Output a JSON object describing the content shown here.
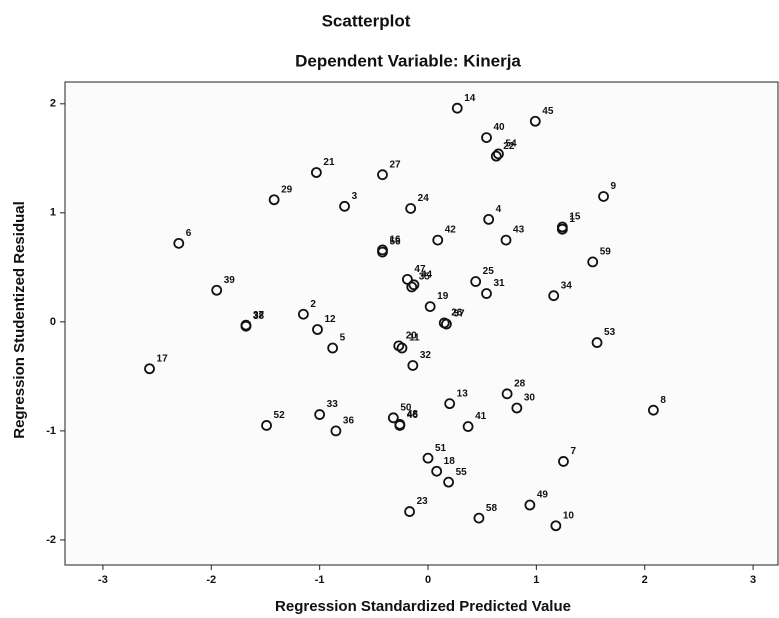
{
  "chart_data": {
    "type": "scatter",
    "title": "Scatterplot",
    "subtitle": "Dependent Variable: Kinerja",
    "x_label": "Regression Standardized Predicted Value",
    "y_label": "Regression Studentized Residual",
    "xlim": [
      -3.35,
      3.23
    ],
    "ylim": [
      -2.23,
      2.2
    ],
    "xticks": [
      -3,
      -2,
      -1,
      0,
      1,
      2,
      3
    ],
    "yticks": [
      -2,
      -1,
      0,
      1,
      2
    ],
    "color": "#111111",
    "point_labels": [
      "14",
      "45",
      "40",
      "54",
      "22",
      "21",
      "27",
      "29",
      "3",
      "9",
      "24",
      "4",
      "15",
      "1",
      "6",
      "42",
      "43",
      "16",
      "56",
      "59",
      "47",
      "44",
      "35",
      "25",
      "39",
      "34",
      "31",
      "19",
      "2",
      "37",
      "38",
      "12",
      "57",
      "26",
      "5",
      "20",
      "11",
      "53",
      "17",
      "32",
      "28",
      "30",
      "13",
      "8",
      "33",
      "50",
      "48",
      "46",
      "41",
      "36",
      "52",
      "51",
      "7",
      "18",
      "55",
      "49",
      "23",
      "58",
      "10"
    ],
    "x": [
      0.27,
      0.99,
      0.54,
      0.65,
      0.63,
      -1.03,
      -0.42,
      -1.42,
      -0.77,
      1.62,
      -0.16,
      0.56,
      1.24,
      1.24,
      -2.3,
      0.09,
      0.72,
      -0.42,
      -0.42,
      1.52,
      -0.19,
      -0.13,
      -0.15,
      0.44,
      -1.95,
      1.16,
      0.54,
      0.02,
      -1.15,
      -1.68,
      -1.68,
      -1.02,
      0.17,
      0.15,
      -0.88,
      -0.27,
      -0.24,
      1.56,
      -2.57,
      -0.14,
      0.73,
      0.82,
      0.2,
      2.08,
      -1.0,
      -0.32,
      -0.26,
      -0.26,
      0.37,
      -0.85,
      -1.49,
      0.0,
      1.25,
      0.08,
      0.19,
      0.94,
      -0.17,
      0.47,
      1.18
    ],
    "values": [
      1.96,
      1.84,
      1.69,
      1.54,
      1.52,
      1.37,
      1.35,
      1.12,
      1.06,
      1.15,
      1.04,
      0.94,
      0.87,
      0.85,
      0.72,
      0.75,
      0.75,
      0.66,
      0.64,
      0.55,
      0.39,
      0.34,
      0.32,
      0.37,
      0.29,
      0.24,
      0.26,
      0.14,
      0.07,
      -0.03,
      -0.04,
      -0.07,
      -0.02,
      -0.01,
      -0.24,
      -0.22,
      -0.24,
      -0.19,
      -0.43,
      -0.4,
      -0.66,
      -0.79,
      -0.75,
      -0.81,
      -0.85,
      -0.88,
      -0.94,
      -0.95,
      -0.96,
      -1.0,
      -0.95,
      -1.25,
      -1.28,
      -1.37,
      -1.47,
      -1.68,
      -1.74,
      -1.8,
      -1.87
    ]
  }
}
